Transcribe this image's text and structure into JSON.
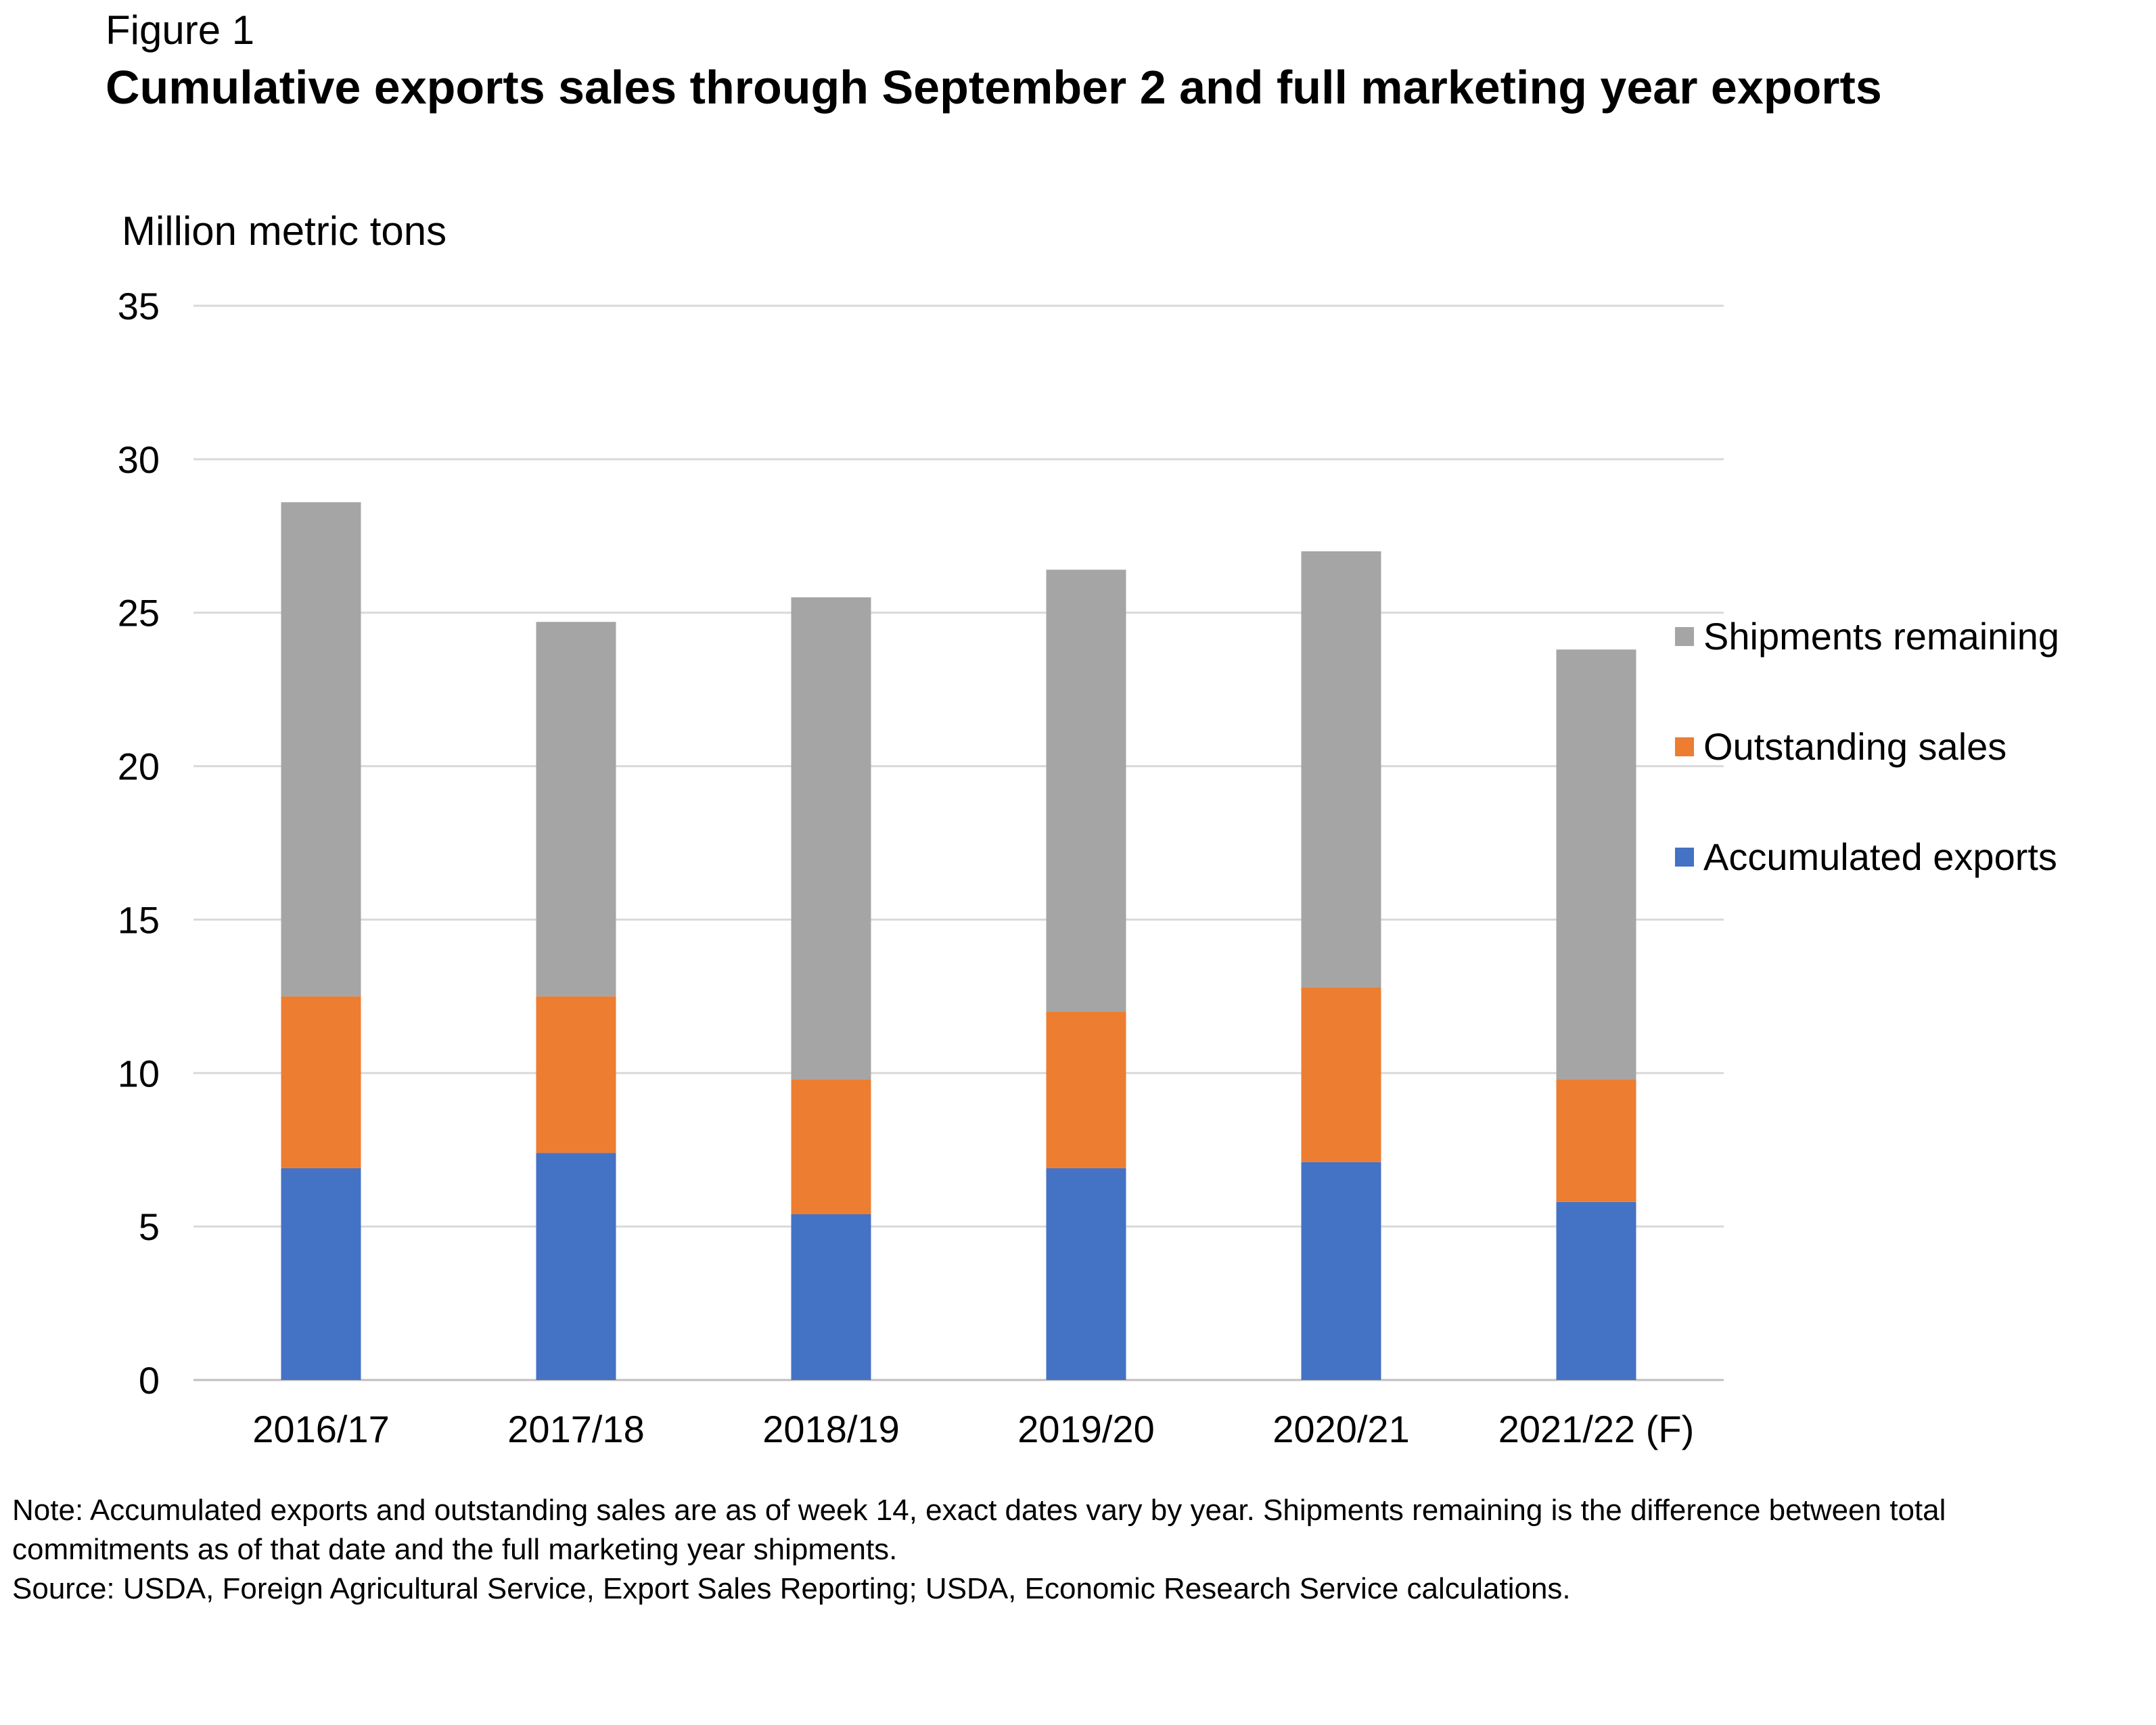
{
  "figure_label": "Figure 1",
  "title": "Cumulative exports sales through September 2 and full marketing year exports",
  "note": "Note: Accumulated exports and outstanding sales are as of week 14, exact dates vary by year. Shipments remaining is the difference between total commitments as of that date and the full marketing year shipments.",
  "source": "Source: USDA, Foreign Agricultural Service, Export Sales Reporting; USDA, Economic Research Service calculations.",
  "chart_data": {
    "type": "bar",
    "stacked": true,
    "title": "Cumulative exports sales through September 2 and full marketing year exports",
    "ylabel": "Million metric tons",
    "xlabel": "",
    "ylim": [
      0,
      35
    ],
    "yticks": [
      0,
      5,
      10,
      15,
      20,
      25,
      30,
      35
    ],
    "grid": true,
    "legend_position": "right",
    "categories": [
      "2016/17",
      "2017/18",
      "2018/19",
      "2019/20",
      "2020/21",
      "2021/22 (F)"
    ],
    "series": [
      {
        "name": "Accumulated exports",
        "color": "#4472C4",
        "values": [
          6.9,
          7.4,
          5.4,
          6.9,
          7.1,
          5.8
        ]
      },
      {
        "name": "Outstanding sales",
        "color": "#ED7D31",
        "values": [
          5.6,
          5.1,
          4.4,
          5.1,
          5.7,
          4.0
        ]
      },
      {
        "name": "Shipments remaining",
        "color": "#A5A5A5",
        "values": [
          16.1,
          12.2,
          15.7,
          14.4,
          14.2,
          14.0
        ]
      }
    ],
    "legend_order": [
      "Shipments remaining",
      "Outstanding sales",
      "Accumulated exports"
    ],
    "gridline_color": "#D9D9D9"
  }
}
